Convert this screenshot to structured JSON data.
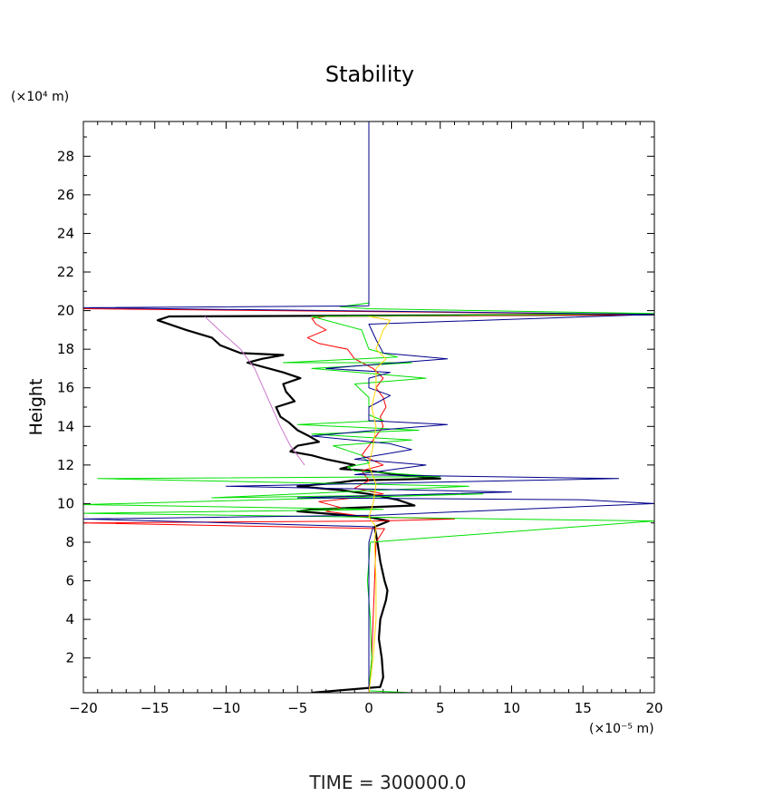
{
  "chart_data": {
    "type": "line",
    "title": "Stability",
    "ylabel": "Height",
    "y_unit_label": "(×10⁴ m)",
    "x_unit_label": "(×10⁻⁵ m)",
    "footer": "TIME  =  300000.0",
    "xlim": [
      -20,
      20
    ],
    "ylim": [
      0.2,
      29.8
    ],
    "x_tick_labels": [
      "−20",
      "−15",
      "−10",
      "−5",
      "0",
      "5",
      "10",
      "15",
      "20"
    ],
    "x_tick_values": [
      -20,
      -15,
      -10,
      -5,
      0,
      5,
      10,
      15,
      20
    ],
    "y_tick_labels": [
      "2",
      "4",
      "6",
      "8",
      "10",
      "12",
      "14",
      "16",
      "18",
      "20",
      "22",
      "24",
      "26",
      "28"
    ],
    "y_tick_values": [
      2,
      4,
      6,
      8,
      10,
      12,
      14,
      16,
      18,
      20,
      22,
      24,
      26,
      28
    ],
    "grid": false,
    "series": [
      {
        "color": "#000000",
        "stroke_width": 2.2,
        "points": [
          [
            -4,
            0.2
          ],
          [
            0.8,
            0.5
          ],
          [
            1,
            1
          ],
          [
            0.9,
            2
          ],
          [
            0.7,
            3
          ],
          [
            0.8,
            4
          ],
          [
            1.2,
            5
          ],
          [
            1.3,
            5.5
          ],
          [
            1.1,
            6
          ],
          [
            0.8,
            7
          ],
          [
            0.6,
            8
          ],
          [
            0.5,
            8.4
          ],
          [
            0.4,
            8.8
          ],
          [
            1.4,
            9.1
          ],
          [
            0,
            9.3
          ],
          [
            -5,
            9.6
          ],
          [
            -4,
            9.7
          ],
          [
            3.2,
            9.9
          ],
          [
            2,
            10.2
          ],
          [
            0,
            10.5
          ],
          [
            -2,
            10.7
          ],
          [
            -5,
            10.9
          ],
          [
            -2,
            11.1
          ],
          [
            -1,
            11.2
          ],
          [
            5,
            11.3
          ],
          [
            2,
            11.5
          ],
          [
            0,
            11.7
          ],
          [
            -2,
            11.8
          ],
          [
            -1,
            12
          ],
          [
            -3,
            12.3
          ],
          [
            -4,
            12.5
          ],
          [
            -5.5,
            12.7
          ],
          [
            -5,
            13
          ],
          [
            -3.5,
            13.2
          ],
          [
            -4.2,
            13.5
          ],
          [
            -5,
            13.8
          ],
          [
            -5.6,
            14.2
          ],
          [
            -6.2,
            14.5
          ],
          [
            -6.5,
            15
          ],
          [
            -5.2,
            15.3
          ],
          [
            -5.8,
            15.8
          ],
          [
            -6,
            16.2
          ],
          [
            -4.8,
            16.5
          ],
          [
            -6,
            16.8
          ],
          [
            -7,
            17
          ],
          [
            -8.5,
            17.3
          ],
          [
            -7.5,
            17.5
          ],
          [
            -6,
            17.7
          ],
          [
            -9,
            17.8
          ],
          [
            -10.4,
            18.2
          ],
          [
            -11,
            18.6
          ],
          [
            -12.8,
            19
          ],
          [
            -14.8,
            19.5
          ],
          [
            -14,
            19.7
          ],
          [
            20,
            19.8
          ]
        ]
      },
      {
        "color": "#ff0000",
        "stroke_width": 1,
        "points": [
          [
            0,
            0.2
          ],
          [
            0.2,
            2
          ],
          [
            0.3,
            4
          ],
          [
            0.4,
            6
          ],
          [
            0.5,
            8
          ],
          [
            1.1,
            8.7
          ],
          [
            -20,
            9.0
          ],
          [
            0.5,
            9.1
          ],
          [
            6,
            9.2
          ],
          [
            0,
            9.3
          ],
          [
            -3,
            9.6
          ],
          [
            -2,
            9.8
          ],
          [
            -3.5,
            10.1
          ],
          [
            -1,
            10.3
          ],
          [
            1,
            10.5
          ],
          [
            -1,
            10.8
          ],
          [
            0,
            11.2
          ],
          [
            -0.5,
            11.7
          ],
          [
            1,
            12
          ],
          [
            -0.5,
            12.5
          ],
          [
            0,
            13
          ],
          [
            0.5,
            13.5
          ],
          [
            1,
            14
          ],
          [
            0.8,
            14.5
          ],
          [
            1.2,
            15
          ],
          [
            1,
            15.5
          ],
          [
            0.5,
            16
          ],
          [
            1,
            16.5
          ],
          [
            0.3,
            17
          ],
          [
            -1,
            17.5
          ],
          [
            -1.5,
            18
          ],
          [
            -3.5,
            18.3
          ],
          [
            -4.3,
            18.6
          ],
          [
            -3,
            19
          ],
          [
            -3.7,
            19.3
          ],
          [
            -4,
            19.6
          ],
          [
            -3,
            19.7
          ],
          [
            20,
            19.8
          ],
          [
            -20,
            20.1
          ]
        ]
      },
      {
        "color": "#00e000",
        "stroke_width": 1,
        "points": [
          [
            3,
            0.2
          ],
          [
            0,
            0.3
          ],
          [
            0.2,
            2
          ],
          [
            0.1,
            4
          ],
          [
            -0.1,
            6
          ],
          [
            0.1,
            8
          ],
          [
            20,
            9.1
          ],
          [
            -20,
            9.5
          ],
          [
            1,
            9.7
          ],
          [
            -20,
            9.95
          ],
          [
            8,
            10.5
          ],
          [
            -11,
            10.3
          ],
          [
            7,
            10.9
          ],
          [
            -19,
            11.3
          ],
          [
            5,
            11.4
          ],
          [
            -1,
            11.7
          ],
          [
            -1.5,
            11.9
          ],
          [
            0,
            12.1
          ],
          [
            -0.5,
            12.5
          ],
          [
            -2.5,
            13
          ],
          [
            3,
            13.3
          ],
          [
            -4,
            13.6
          ],
          [
            3.5,
            13.8
          ],
          [
            -5,
            14.1
          ],
          [
            1,
            14.3
          ],
          [
            0,
            14.6
          ],
          [
            0,
            15.5
          ],
          [
            -1,
            16.2
          ],
          [
            4,
            16.5
          ],
          [
            -4,
            17
          ],
          [
            3,
            17.3
          ],
          [
            -6,
            17.3
          ],
          [
            2,
            17.6
          ],
          [
            0,
            18
          ],
          [
            -0.5,
            19
          ],
          [
            -4,
            19.7
          ],
          [
            20,
            19.85
          ],
          [
            0,
            20.1
          ],
          [
            -2,
            20.2
          ],
          [
            0,
            20.4
          ]
        ]
      },
      {
        "color": "#00008b",
        "stroke_width": 1,
        "points": [
          [
            0,
            0.2
          ],
          [
            0,
            8
          ],
          [
            0.3,
            8.8
          ],
          [
            -20,
            9.2
          ],
          [
            0.5,
            9.4
          ],
          [
            20,
            10.0
          ],
          [
            15,
            10.2
          ],
          [
            -5,
            10.3
          ],
          [
            10,
            10.6
          ],
          [
            -10,
            10.9
          ],
          [
            17.5,
            11.3
          ],
          [
            -1,
            11.5
          ],
          [
            2,
            11.8
          ],
          [
            4,
            12
          ],
          [
            -1,
            12.3
          ],
          [
            3,
            12.8
          ],
          [
            1.5,
            13.1
          ],
          [
            -4,
            13.5
          ],
          [
            0.5,
            13.8
          ],
          [
            5.5,
            14.1
          ],
          [
            0,
            14.3
          ],
          [
            0,
            15
          ],
          [
            1.5,
            15.6
          ],
          [
            0,
            16
          ],
          [
            0,
            16.5
          ],
          [
            1.5,
            16.8
          ],
          [
            -3,
            17
          ],
          [
            2,
            17.3
          ],
          [
            5.5,
            17.5
          ],
          [
            1,
            17.8
          ],
          [
            0.5,
            18.5
          ],
          [
            0,
            19.3
          ],
          [
            20,
            19.8
          ],
          [
            -20,
            20.15
          ],
          [
            0,
            20.25
          ],
          [
            0,
            29.8
          ]
        ]
      },
      {
        "color": "#ffd700",
        "stroke_width": 1,
        "points": [
          [
            0,
            0.2
          ],
          [
            0.3,
            2
          ],
          [
            0.5,
            4
          ],
          [
            0.5,
            6
          ],
          [
            0.4,
            8
          ],
          [
            0.5,
            8.8
          ],
          [
            0,
            9.3
          ],
          [
            0.3,
            10
          ],
          [
            0.5,
            11
          ],
          [
            0,
            12
          ],
          [
            0.3,
            13
          ],
          [
            0.5,
            14
          ],
          [
            0.2,
            15
          ],
          [
            0.5,
            16
          ],
          [
            0.5,
            17
          ],
          [
            1.2,
            17.5
          ],
          [
            0.5,
            18
          ],
          [
            1,
            19
          ],
          [
            1.5,
            19.5
          ],
          [
            0,
            19.7
          ]
        ]
      },
      {
        "color": "#cc77cc",
        "stroke_width": 1,
        "points": [
          [
            -4.5,
            12
          ],
          [
            -5.5,
            13
          ],
          [
            -6.2,
            14
          ],
          [
            -6.8,
            15
          ],
          [
            -7.4,
            16
          ],
          [
            -8,
            17
          ],
          [
            -9,
            18
          ],
          [
            -10.5,
            19
          ],
          [
            -11.5,
            19.7
          ]
        ]
      }
    ]
  }
}
